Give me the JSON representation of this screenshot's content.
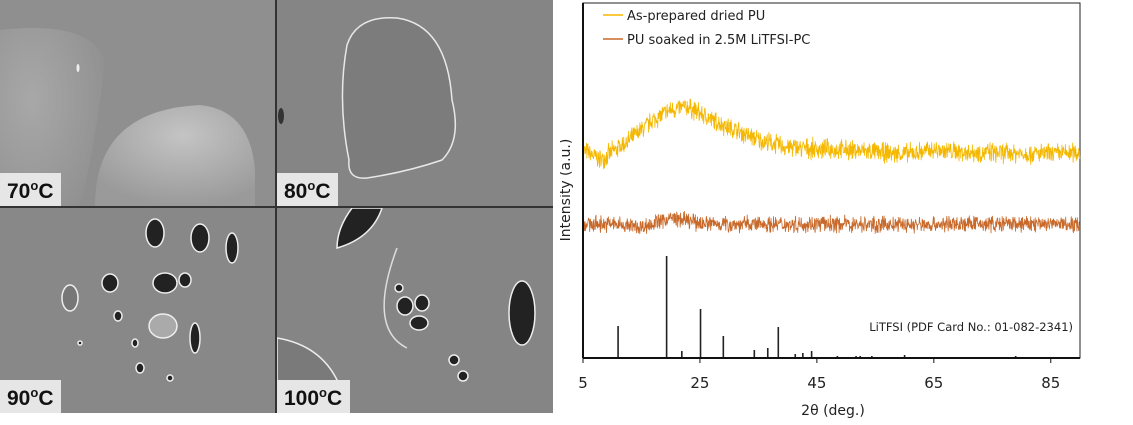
{
  "sem_panels": [
    {
      "temp": "70",
      "deg": "o",
      "unit": "C"
    },
    {
      "temp": "80",
      "deg": "o",
      "unit": "C"
    },
    {
      "temp": "90",
      "deg": "o",
      "unit": "C"
    },
    {
      "temp": "100",
      "deg": "o",
      "unit": "C"
    }
  ],
  "chart_data": {
    "type": "line",
    "xlabel": "2θ (deg.)",
    "ylabel": "Intensity (a.u.)",
    "xlim": [
      5,
      90
    ],
    "ylim": [
      0,
      355
    ],
    "xticks": [
      "5",
      "25",
      "45",
      "65",
      "85"
    ],
    "xtick_values": [
      5,
      25,
      45,
      65,
      85
    ],
    "legend_position": "top-left",
    "series": [
      {
        "name": "As-prepared dried PU",
        "color": "#f5b800",
        "noise": 12,
        "x": [
          5,
          8,
          13,
          17,
          20,
          23,
          27,
          31,
          35,
          40,
          45,
          50,
          55,
          60,
          65,
          70,
          85,
          90
        ],
        "y": [
          208,
          198,
          218,
          238,
          248,
          251,
          238,
          228,
          218,
          211,
          209,
          208,
          206,
          204,
          208,
          206,
          204,
          206
        ]
      },
      {
        "name": "PU soaked in 2.5M LiTFSI-PC",
        "color": "#c8692a",
        "noise": 10,
        "x": [
          5,
          10,
          15,
          20,
          25,
          30,
          40,
          50,
          60,
          70,
          80,
          90
        ],
        "y": [
          134,
          134,
          131,
          140,
          135,
          134,
          134,
          134,
          133,
          134,
          134,
          134
        ]
      }
    ],
    "reference": {
      "label": "LiTFSI (PDF Card No.: 01-082-2341)",
      "color": "#222222",
      "peaks_x": [
        11.0,
        19.3,
        21.9,
        25.1,
        29.0,
        34.3,
        36.6,
        38.4,
        41.3,
        42.6,
        44.1,
        48.5,
        51.7,
        52.4,
        54.4,
        55.5,
        58.5,
        60.0,
        61.2,
        66.5,
        68.0,
        69.0,
        72.8,
        74.0,
        76.5,
        79.0
      ],
      "peaks_y": [
        32,
        102,
        7,
        49,
        22,
        8,
        10,
        31,
        4,
        5,
        7,
        2,
        2,
        2,
        2,
        1,
        1,
        3,
        1,
        1,
        1,
        1,
        1,
        1,
        1,
        2
      ]
    }
  }
}
